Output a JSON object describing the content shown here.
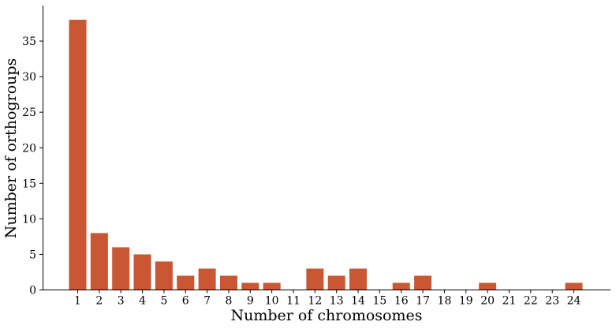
{
  "chart_data": {
    "type": "bar",
    "categories": [
      "1",
      "2",
      "3",
      "4",
      "5",
      "6",
      "7",
      "8",
      "9",
      "10",
      "11",
      "12",
      "13",
      "14",
      "15",
      "16",
      "17",
      "18",
      "19",
      "20",
      "21",
      "22",
      "23",
      "24"
    ],
    "values": [
      38,
      8,
      6,
      5,
      4,
      2,
      3,
      2,
      1,
      1,
      0,
      3,
      2,
      3,
      0,
      1,
      2,
      0,
      0,
      1,
      0,
      0,
      0,
      1
    ],
    "xlabel": "Number of chromosomes",
    "ylabel": "Number of orthogroups",
    "ylim": [
      0,
      40
    ],
    "yticks": [
      0,
      5,
      10,
      15,
      20,
      25,
      30,
      35
    ],
    "bar_color": "#c95733",
    "grid": false,
    "legend": "none"
  }
}
